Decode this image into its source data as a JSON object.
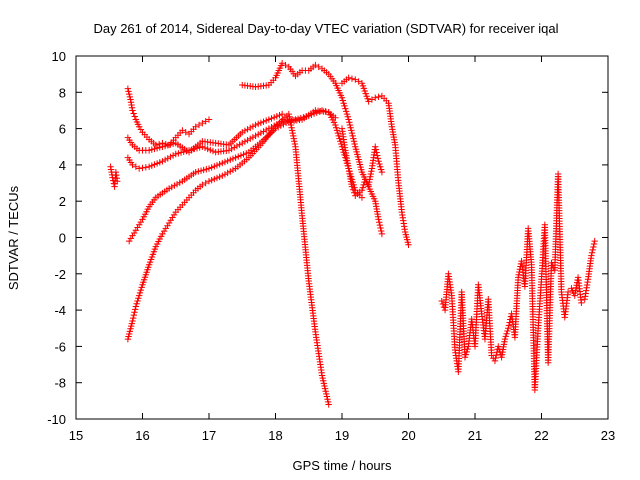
{
  "chart_data": {
    "type": "scatter",
    "title": "Day 261 of 2014, Sidereal Day-to-day VTEC variation (SDTVAR) for receiver iqal",
    "xlabel": "GPS time / hours",
    "ylabel": "SDTVAR / TECUs",
    "xlim": [
      15,
      23
    ],
    "ylim": [
      -10,
      10
    ],
    "xticks": [
      15,
      16,
      17,
      18,
      19,
      20,
      21,
      22,
      23
    ],
    "yticks": [
      -10,
      -8,
      -6,
      -4,
      -2,
      0,
      2,
      4,
      6,
      8,
      10
    ],
    "grid": false,
    "legend": "none",
    "marker": "+",
    "color": "#ff0000",
    "series": [
      {
        "name": "s1",
        "x": [
          15.52,
          15.55,
          15.58,
          15.6,
          15.62
        ],
        "y": [
          3.9,
          3.3,
          2.8,
          3.6,
          3.1
        ]
      },
      {
        "name": "s2",
        "x": [
          15.78,
          15.82,
          15.85,
          15.9,
          15.95,
          16.0,
          16.1,
          16.2,
          16.3,
          16.4,
          16.5,
          16.6,
          16.7,
          16.8,
          16.9,
          17.0
        ],
        "y": [
          8.2,
          7.6,
          7.0,
          6.5,
          6.1,
          5.8,
          5.4,
          5.1,
          5.2,
          5.1,
          5.5,
          5.9,
          5.7,
          6.1,
          6.3,
          6.5
        ]
      },
      {
        "name": "s3",
        "x": [
          15.78,
          15.85,
          15.95,
          16.1,
          16.3,
          16.5,
          16.7,
          16.9,
          17.1,
          17.3,
          17.5,
          17.7,
          17.9,
          18.1
        ],
        "y": [
          5.5,
          5.1,
          4.8,
          4.8,
          5.0,
          5.2,
          4.7,
          5.3,
          5.2,
          5.1,
          5.8,
          6.2,
          6.5,
          6.8
        ]
      },
      {
        "name": "s4",
        "x": [
          15.78,
          15.85,
          15.95,
          16.1,
          16.3,
          16.5,
          16.7,
          16.9,
          17.1,
          17.3,
          17.5,
          17.7,
          17.9,
          18.1,
          18.3,
          18.5,
          18.7,
          18.8,
          18.9
        ],
        "y": [
          4.4,
          4.0,
          3.8,
          3.9,
          4.2,
          4.6,
          4.8,
          5.0,
          4.7,
          4.8,
          5.2,
          5.6,
          6.0,
          6.4,
          6.5,
          6.7,
          7.0,
          6.9,
          6.6
        ]
      },
      {
        "name": "s5",
        "x": [
          15.8,
          15.9,
          16.0,
          16.1,
          16.2,
          16.4,
          16.6,
          16.8,
          17.0,
          17.2,
          17.4,
          17.6,
          17.8,
          18.0,
          18.2,
          18.4,
          18.6,
          18.8,
          18.9,
          19.0,
          19.1,
          19.2,
          19.3
        ],
        "y": [
          -0.2,
          0.4,
          1.0,
          1.7,
          2.2,
          2.7,
          3.1,
          3.6,
          3.8,
          4.1,
          4.4,
          4.7,
          5.3,
          6.0,
          6.4,
          6.5,
          7.0,
          6.9,
          6.2,
          5.0,
          3.8,
          2.6,
          2.2
        ]
      },
      {
        "name": "s6",
        "x": [
          15.78,
          15.85,
          15.9,
          16.0,
          16.1,
          16.2,
          16.3,
          16.4,
          16.5,
          16.6,
          16.7,
          16.8,
          16.9,
          17.0,
          17.2,
          17.4,
          17.6,
          17.8,
          18.0,
          18.2,
          18.3,
          18.4,
          18.5,
          18.6,
          18.7,
          18.8
        ],
        "y": [
          -5.6,
          -4.6,
          -3.8,
          -2.6,
          -1.5,
          -0.5,
          0.2,
          0.8,
          1.4,
          1.8,
          2.2,
          2.6,
          2.9,
          3.1,
          3.4,
          3.8,
          4.4,
          5.2,
          6.1,
          6.8,
          5.0,
          1.2,
          -2.4,
          -5.2,
          -7.6,
          -9.2
        ]
      },
      {
        "name": "s7",
        "x": [
          17.5,
          17.7,
          17.9,
          18.0,
          18.1,
          18.2,
          18.3,
          18.4,
          18.5,
          18.6,
          18.7,
          18.8,
          18.9,
          19.0,
          19.1,
          19.2,
          19.3,
          19.4,
          19.5,
          19.55,
          19.6
        ],
        "y": [
          8.4,
          8.3,
          8.4,
          8.8,
          9.6,
          9.4,
          8.9,
          9.2,
          9.2,
          9.5,
          9.3,
          9.0,
          8.5,
          7.7,
          6.5,
          5.0,
          3.6,
          2.8,
          2.0,
          1.0,
          0.2
        ]
      },
      {
        "name": "s8",
        "x": [
          19.0,
          19.1,
          19.2,
          19.3,
          19.4,
          19.5,
          19.6,
          19.7,
          19.75,
          19.8,
          19.85,
          19.9,
          19.95,
          20.0
        ],
        "y": [
          8.5,
          8.8,
          8.7,
          8.5,
          7.5,
          7.7,
          7.8,
          7.4,
          6.1,
          5.1,
          3.0,
          1.4,
          0.3,
          -0.4
        ]
      },
      {
        "name": "s9",
        "x": [
          19.0,
          19.05,
          19.1,
          19.15,
          19.2,
          19.3,
          19.35,
          19.4,
          19.45,
          19.5,
          19.55,
          19.6
        ],
        "y": [
          6.0,
          4.8,
          3.8,
          2.8,
          2.3,
          2.6,
          3.2,
          2.9,
          3.8,
          5.0,
          4.2,
          3.6
        ]
      },
      {
        "name": "s10",
        "x": [
          20.5,
          20.55,
          20.6,
          20.65,
          20.7,
          20.75,
          20.8,
          20.85,
          20.9,
          20.95,
          21.0,
          21.05,
          21.1,
          21.15,
          21.2,
          21.25,
          21.3,
          21.35,
          21.4,
          21.45,
          21.5,
          21.55,
          21.6,
          21.65,
          21.7,
          21.75,
          21.8,
          21.85,
          21.9,
          21.95,
          22.0,
          22.05,
          22.1,
          22.15,
          22.2,
          22.25,
          22.3,
          22.35,
          22.4,
          22.45,
          22.5,
          22.55,
          22.6,
          22.65,
          22.7,
          22.75,
          22.8
        ],
        "y": [
          -3.5,
          -4.0,
          -2.0,
          -3.2,
          -6.2,
          -7.4,
          -3.0,
          -6.6,
          -6.0,
          -4.5,
          -6.0,
          -2.6,
          -4.2,
          -5.6,
          -3.4,
          -6.5,
          -6.8,
          -6.0,
          -6.6,
          -5.6,
          -5.0,
          -4.2,
          -5.5,
          -2.2,
          -1.3,
          -2.7,
          0.5,
          -1.5,
          -8.4,
          -5.0,
          -2.3,
          0.7,
          -6.9,
          -1.4,
          -1.8,
          3.5,
          -3.0,
          -4.4,
          -3.0,
          -2.8,
          -3.2,
          -2.2,
          -3.6,
          -3.4,
          -2.3,
          -1.0,
          -0.2
        ]
      }
    ]
  }
}
